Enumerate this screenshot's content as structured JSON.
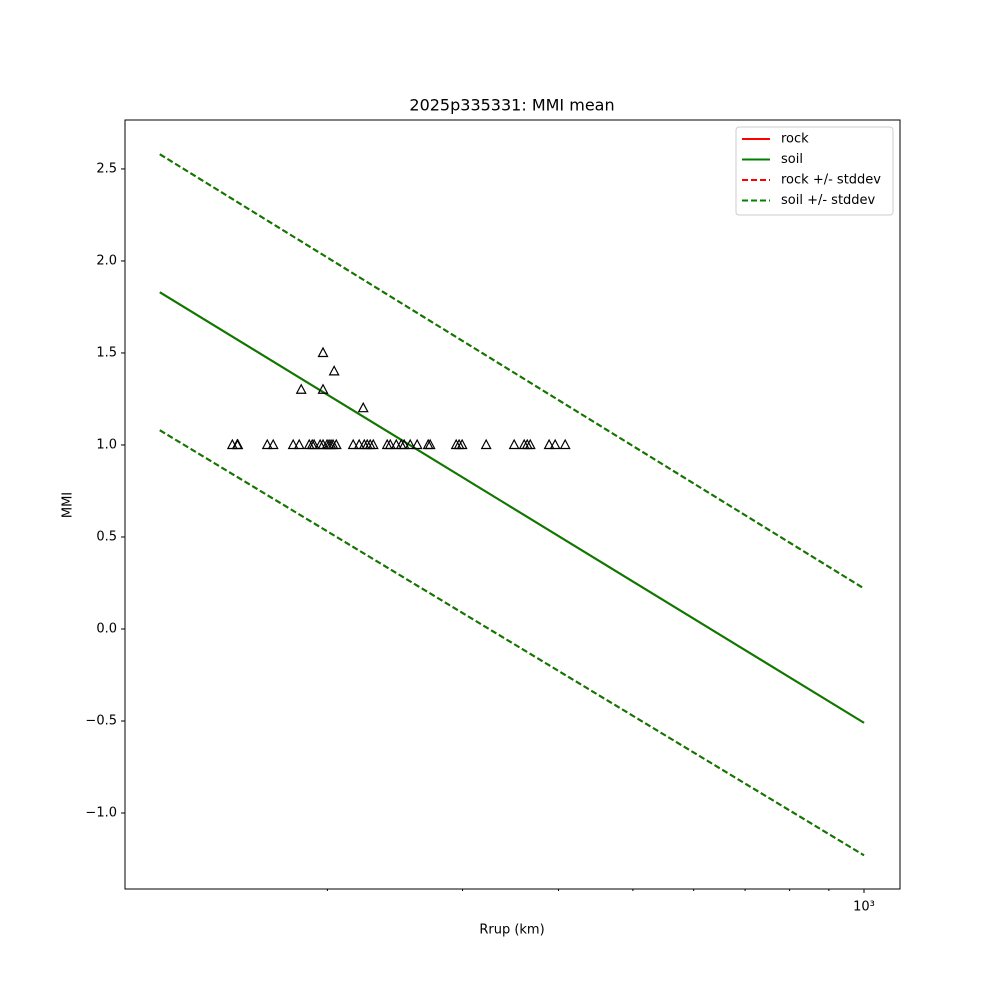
{
  "chart_data": {
    "type": "line",
    "title": "2025p335331: MMI mean",
    "x_label": "Rrup (km)",
    "y_label": "MMI",
    "x_log": true,
    "xlim": [
      109,
      1114
    ],
    "xticks": [
      {
        "value": 1000,
        "label": "10³"
      }
    ],
    "xminorticks": [
      200,
      300,
      400,
      500,
      600,
      700,
      800,
      900
    ],
    "ylim": [
      -1.413,
      2.766
    ],
    "yticks": [
      {
        "value": -1.0,
        "label": "−1.0"
      },
      {
        "value": -0.5,
        "label": "−0.5"
      },
      {
        "value": 0.0,
        "label": "0.0"
      },
      0.5,
      {
        "value": 1.0,
        "label": "1.0"
      },
      1.5,
      {
        "value": 2.0,
        "label": "2.0"
      },
      2.5
    ],
    "legend": "upper right",
    "series": [
      {
        "name": "rock",
        "color": "#ff0000",
        "dashed": false,
        "x": [
          121,
          1000
        ],
        "values": [
          1.83,
          -0.51
        ]
      },
      {
        "name": "soil",
        "color": "#008000",
        "dashed": false,
        "x": [
          121,
          1000
        ],
        "values": [
          1.83,
          -0.51
        ]
      },
      {
        "name": "rock +/- stddev",
        "color": "#ff0000",
        "dashed": true,
        "x": [
          121,
          1000
        ],
        "upper": [
          2.58,
          0.22
        ],
        "lower": [
          1.08,
          -1.23
        ]
      },
      {
        "name": "soil +/- stddev",
        "color": "#008000",
        "dashed": true,
        "x": [
          121,
          1000
        ],
        "upper": [
          2.58,
          0.22
        ],
        "lower": [
          1.08,
          -1.23
        ]
      }
    ],
    "points": {
      "marker": "triangle",
      "color": "#000000",
      "x": [
        150.4,
        152.6,
        152.9,
        167.0,
        170.0,
        180.5,
        183.8,
        189.4,
        191.1,
        192.2,
        195.7,
        197.4,
        199.8,
        201.0,
        202.2,
        203.4,
        205.4,
        216.1,
        220.0,
        223.4,
        225.4,
        227.4,
        229.5,
        239.3,
        241.5,
        245.9,
        249.6,
        251.8,
        256.4,
        261.8,
        270.6,
        272.2,
        294.3,
        296.9,
        299.6,
        322.0,
        350.2,
        360.9,
        364.2,
        367.5,
        388.9,
        396.0,
        408.1,
        184.9,
        197.4,
        197.4,
        204.1,
        222.7
      ],
      "values": [
        1.0,
        1.0,
        1.0,
        1.0,
        1.0,
        1.0,
        1.0,
        1.0,
        1.0,
        1.0,
        1.0,
        1.0,
        1.0,
        1.0,
        1.0,
        1.0,
        1.0,
        1.0,
        1.0,
        1.0,
        1.0,
        1.0,
        1.0,
        1.0,
        1.0,
        1.0,
        1.0,
        1.0,
        1.0,
        1.0,
        1.0,
        1.0,
        1.0,
        1.0,
        1.0,
        1.0,
        1.0,
        1.0,
        1.0,
        1.0,
        1.0,
        1.0,
        1.0,
        1.3,
        1.5,
        1.3,
        1.4,
        1.2
      ]
    }
  }
}
